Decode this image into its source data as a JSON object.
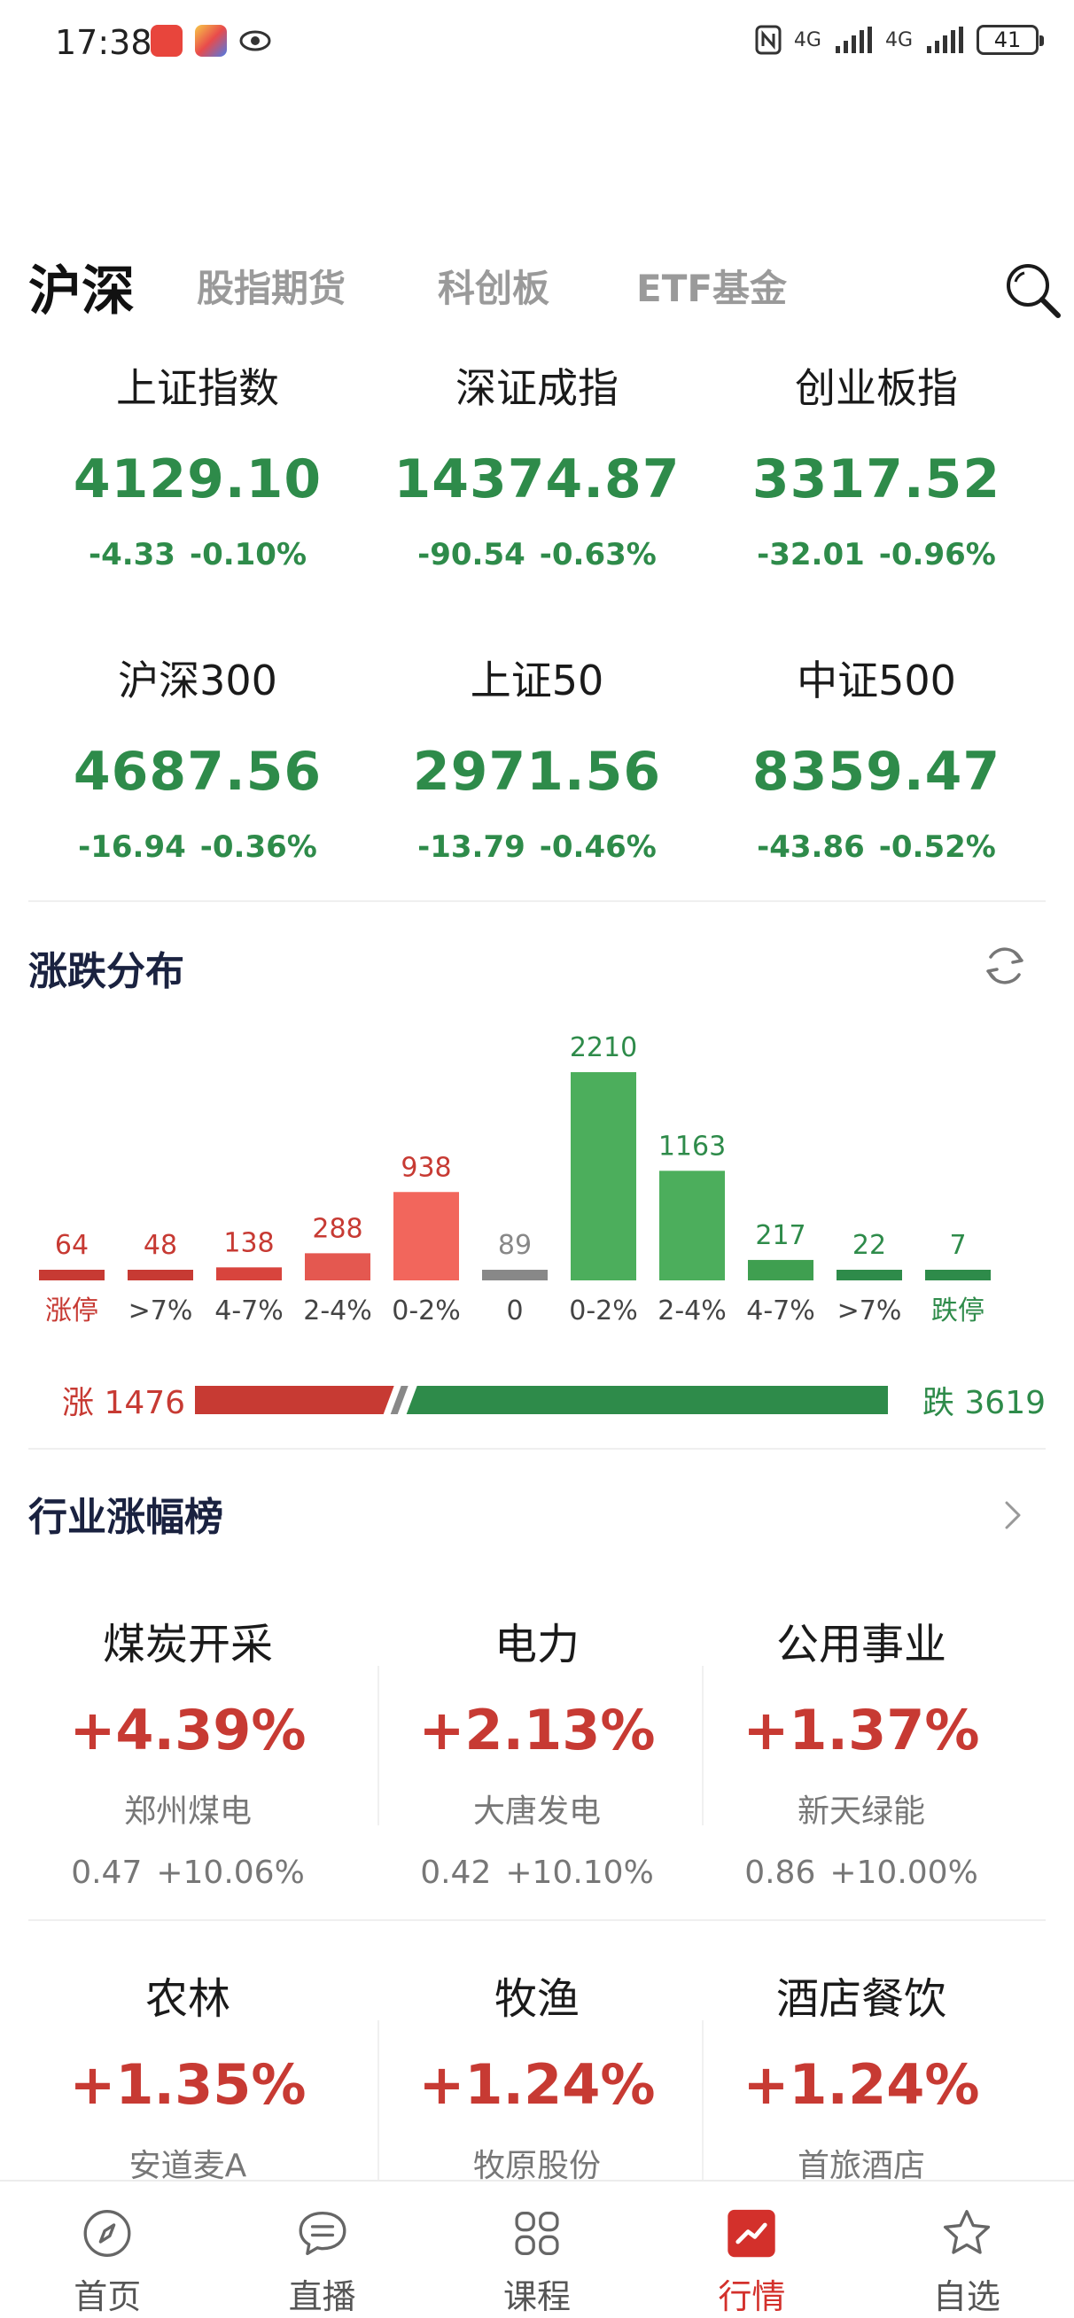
{
  "status_bar": {
    "time": "17:38",
    "network_1": "4G",
    "network_2": "4G",
    "battery": "41"
  },
  "tabs": [
    {
      "label": "沪深",
      "active": true
    },
    {
      "label": "股指期货",
      "active": false
    },
    {
      "label": "科创板",
      "active": false
    },
    {
      "label": "ETF基金",
      "active": false
    }
  ],
  "indices": [
    {
      "name": "上证指数",
      "value": "4129.10",
      "change": "-4.33",
      "pct": "-0.10%"
    },
    {
      "name": "深证成指",
      "value": "14374.87",
      "change": "-90.54",
      "pct": "-0.63%"
    },
    {
      "name": "创业板指",
      "value": "3317.52",
      "change": "-32.01",
      "pct": "-0.96%"
    },
    {
      "name": "沪深300",
      "value": "4687.56",
      "change": "-16.94",
      "pct": "-0.36%"
    },
    {
      "name": "上证50",
      "value": "2971.56",
      "change": "-13.79",
      "pct": "-0.46%"
    },
    {
      "name": "中证500",
      "value": "8359.47",
      "change": "-43.86",
      "pct": "-0.52%"
    }
  ],
  "distribution": {
    "title": "涨跌分布",
    "rise_label": "涨 1476",
    "fall_label": "跌 3619",
    "rise_count": 1476,
    "fall_count": 3619,
    "colors": {
      "up": "#c73a33",
      "up_light": "#e45850",
      "up_lighter": "#f2665c",
      "flat": "#888888",
      "down": "#4cae5c",
      "down_dark": "#2e8b4a"
    }
  },
  "chart_data": {
    "type": "bar",
    "categories": [
      "涨停",
      ">7%",
      "4-7%",
      "2-4%",
      "0-2%",
      "0",
      "0-2%",
      "2-4%",
      "4-7%",
      ">7%",
      "跌停"
    ],
    "values": [
      64,
      48,
      138,
      288,
      938,
      89,
      2210,
      1163,
      217,
      22,
      7
    ],
    "bar_colors": [
      "#c73a33",
      "#c73a33",
      "#d8443d",
      "#e45850",
      "#f2665c",
      "#888888",
      "#4cae5c",
      "#4cae5c",
      "#3f9f50",
      "#2e8b4a",
      "#2e8b4a"
    ],
    "label_colors": [
      "#c73a33",
      "#c73a33",
      "#c73a33",
      "#c73a33",
      "#c73a33",
      "#888888",
      "#2e8b4a",
      "#2e8b4a",
      "#2e8b4a",
      "#2e8b4a",
      "#2e8b4a"
    ]
  },
  "industry": {
    "title": "行业涨幅榜",
    "items": [
      {
        "name": "煤炭开采",
        "pct": "+4.39%",
        "stock": "郑州煤电",
        "price": "0.47",
        "stock_pct": "+10.06%"
      },
      {
        "name": "电力",
        "pct": "+2.13%",
        "stock": "大唐发电",
        "price": "0.42",
        "stock_pct": "+10.10%"
      },
      {
        "name": "公用事业",
        "pct": "+1.37%",
        "stock": "新天绿能",
        "price": "0.86",
        "stock_pct": "+10.00%"
      },
      {
        "name": "农林",
        "pct": "+1.35%",
        "stock": "安道麦A"
      },
      {
        "name": "牧渔",
        "pct": "+1.24%",
        "stock": "牧原股份"
      },
      {
        "name": "酒店餐饮",
        "pct": "+1.24%",
        "stock": "首旅酒店"
      }
    ]
  },
  "bottom_nav": [
    {
      "label": "首页",
      "icon": "compass-icon",
      "active": false
    },
    {
      "label": "直播",
      "icon": "chat-bubble-icon",
      "active": false
    },
    {
      "label": "课程",
      "icon": "grid-clover-icon",
      "active": false
    },
    {
      "label": "行情",
      "icon": "market-chart-icon",
      "active": true
    },
    {
      "label": "自选",
      "icon": "star-icon",
      "active": false
    }
  ]
}
